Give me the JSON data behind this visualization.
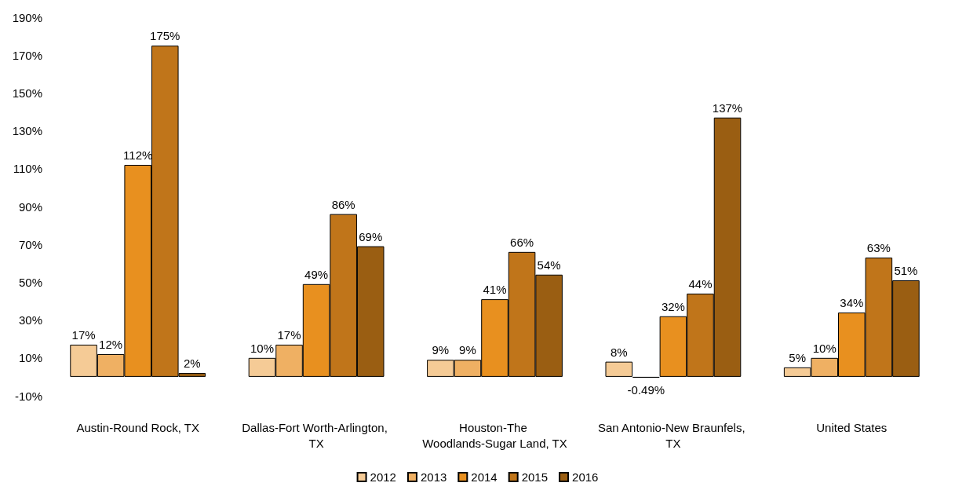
{
  "chart_data": {
    "type": "bar",
    "categories": [
      "Austin-Round Rock, TX",
      "Dallas-Fort Worth-Arlington, TX",
      "Houston-The Woodlands-Sugar Land, TX",
      "San Antonio-New Braunfels, TX",
      "United States"
    ],
    "series": [
      {
        "name": "2012",
        "color": "#f5cb96",
        "values": [
          17,
          10,
          9,
          8,
          5
        ],
        "value_labels": [
          "17%",
          "10%",
          "9%",
          "8%",
          "5%"
        ]
      },
      {
        "name": "2013",
        "color": "#efb063",
        "values": [
          12,
          17,
          9,
          -0.49,
          10
        ],
        "value_labels": [
          "12%",
          "17%",
          "9%",
          "-0.49%",
          "10%"
        ]
      },
      {
        "name": "2014",
        "color": "#e8901f",
        "values": [
          112,
          49,
          41,
          32,
          34
        ],
        "value_labels": [
          "112%",
          "49%",
          "41%",
          "32%",
          "34%"
        ]
      },
      {
        "name": "2015",
        "color": "#c0751a",
        "values": [
          175,
          86,
          66,
          44,
          63
        ],
        "value_labels": [
          "175%",
          "86%",
          "66%",
          "44%",
          "63%"
        ]
      },
      {
        "name": "2016",
        "color": "#9a5e12",
        "values": [
          2,
          69,
          54,
          137,
          51
        ],
        "value_labels": [
          "2%",
          "69%",
          "54%",
          "137%",
          "51%"
        ]
      }
    ],
    "ylim": [
      -10,
      190
    ],
    "yticks": [
      {
        "value": -10,
        "label": "-10%"
      },
      {
        "value": 10,
        "label": "10%"
      },
      {
        "value": 30,
        "label": "30%"
      },
      {
        "value": 50,
        "label": "50%"
      },
      {
        "value": 70,
        "label": "70%"
      },
      {
        "value": 90,
        "label": "90%"
      },
      {
        "value": 110,
        "label": "110%"
      },
      {
        "value": 130,
        "label": "130%"
      },
      {
        "value": 150,
        "label": "150%"
      },
      {
        "value": 170,
        "label": "170%"
      },
      {
        "value": 190,
        "label": "190%"
      }
    ],
    "grid": false,
    "legend": "bottom"
  }
}
